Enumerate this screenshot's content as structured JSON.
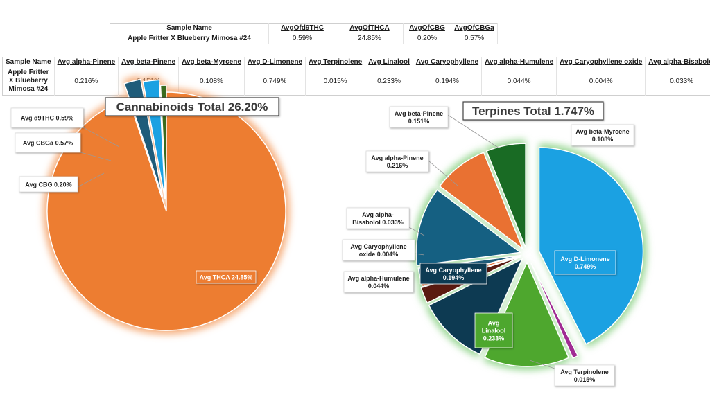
{
  "table1": {
    "headers": [
      "Sample Name",
      "AvgOfd9THC",
      "AvgOfTHCA",
      "AvgOfCBG",
      "AvgOfCBGa"
    ],
    "row": [
      "Apple Fritter X Blueberry Mimosa #24",
      "0.59%",
      "24.85%",
      "0.20%",
      "0.57%"
    ]
  },
  "table2": {
    "headers": [
      "Sample Name",
      "Avg alpha-Pinene",
      "Avg beta-Pinene",
      "Avg beta-Myrcene",
      "Avg D-Limonene",
      "Avg Terpinolene",
      "Avg Linalool",
      "Avg Caryophyllene",
      "Avg alpha-Humulene",
      "Avg Caryophyllene oxide",
      "Avg alpha-Bisabolol"
    ],
    "row": [
      "Apple Fritter X Blueberry Mimosa #24",
      "0.216%",
      "0.151%",
      "0.108%",
      "0.749%",
      "0.015%",
      "0.233%",
      "0.194%",
      "0.044%",
      "0.004%",
      "0.033%"
    ]
  },
  "chart_data": [
    {
      "type": "pie",
      "title": "Cannabinoids Total 26.20%",
      "slices": [
        {
          "label": "Avg THCA",
          "value": 24.85,
          "value_label": "24.85%",
          "color": "#ED7D31"
        },
        {
          "label": "Avg d9THC",
          "value": 0.59,
          "value_label": "0.59%",
          "color": "#1F5C7A"
        },
        {
          "label": "Avg CBGa",
          "value": 0.57,
          "value_label": "0.57%",
          "color": "#1BA1E2"
        },
        {
          "label": "Avg CBG",
          "value": 0.2,
          "value_label": "0.20%",
          "color": "#3A6B1E"
        }
      ]
    },
    {
      "type": "pie",
      "title": "Terpines Total 1.747%",
      "slices": [
        {
          "label": "Avg D-Limonene",
          "value": 0.749,
          "value_label": "0.749%",
          "color": "#1BA1E2"
        },
        {
          "label": "Avg Terpinolene",
          "value": 0.015,
          "value_label": "0.015%",
          "color": "#A02B93"
        },
        {
          "label": "Avg Linalool",
          "value": 0.233,
          "value_label": "0.233%",
          "color": "#4EA72E"
        },
        {
          "label": "Avg Caryophyllene",
          "value": 0.194,
          "value_label": "0.194%",
          "color": "#0D3A52"
        },
        {
          "label": "Avg alpha-Humulene",
          "value": 0.044,
          "value_label": "0.044%",
          "color": "#5A1A10"
        },
        {
          "label": "Avg Caryophyllene oxide",
          "value": 0.004,
          "value_label": "0.004%",
          "color": "#E97132"
        },
        {
          "label": "Avg alpha-Bisabolol",
          "value": 0.033,
          "value_label": "0.033%",
          "color": "#1F5C7A"
        },
        {
          "label": "Avg alpha-Pinene",
          "value": 0.216,
          "value_label": "0.216%",
          "color": "#156082"
        },
        {
          "label": "Avg beta-Pinene",
          "value": 0.151,
          "value_label": "0.151%",
          "color": "#E97132"
        },
        {
          "label": "Avg beta-Myrcene",
          "value": 0.108,
          "value_label": "0.108%",
          "color": "#196B24"
        }
      ]
    }
  ]
}
